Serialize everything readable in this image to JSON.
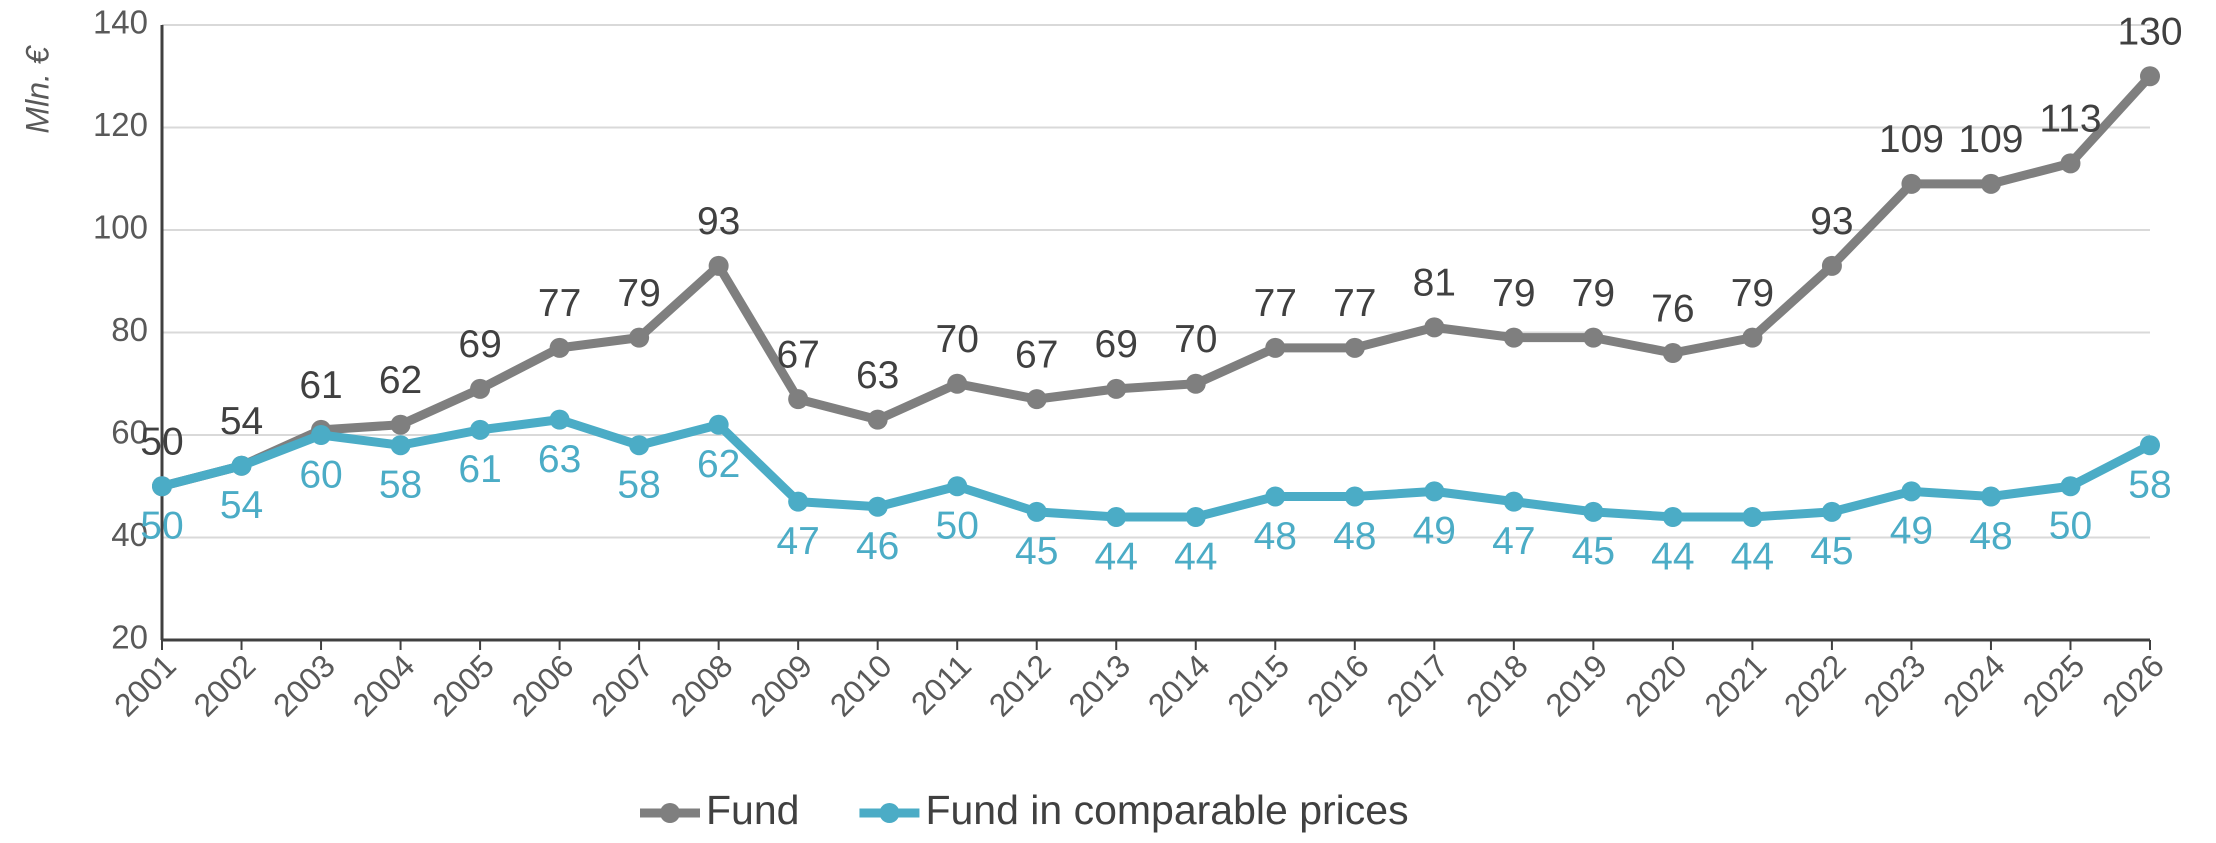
{
  "chart_data": {
    "type": "line",
    "y_label": "Mln. €",
    "categories": [
      "2001",
      "2002",
      "2003",
      "2004",
      "2005",
      "2006",
      "2007",
      "2008",
      "2009",
      "2010",
      "2011",
      "2012",
      "2013",
      "2014",
      "2015",
      "2016",
      "2017",
      "2018",
      "2019",
      "2020",
      "2021",
      "2022",
      "2023",
      "2024",
      "2025",
      "2026"
    ],
    "series": [
      {
        "name": "Fund",
        "color": "#7f7f7f",
        "label_position": "above",
        "values": [
          50,
          54,
          61,
          62,
          69,
          77,
          79,
          93,
          67,
          63,
          70,
          67,
          69,
          70,
          77,
          77,
          81,
          79,
          79,
          76,
          79,
          93,
          109,
          109,
          113,
          130
        ]
      },
      {
        "name": "Fund in comparable prices",
        "color": "#4bacc6",
        "label_position": "below",
        "values": [
          50,
          54,
          60,
          58,
          61,
          63,
          58,
          62,
          47,
          46,
          50,
          45,
          44,
          44,
          48,
          48,
          49,
          47,
          45,
          44,
          44,
          45,
          49,
          48,
          50,
          58
        ]
      }
    ],
    "ylim": [
      20,
      140
    ],
    "yticks": [
      20,
      40,
      60,
      80,
      100,
      120,
      140
    ],
    "grid": true,
    "legend": "bottom"
  }
}
